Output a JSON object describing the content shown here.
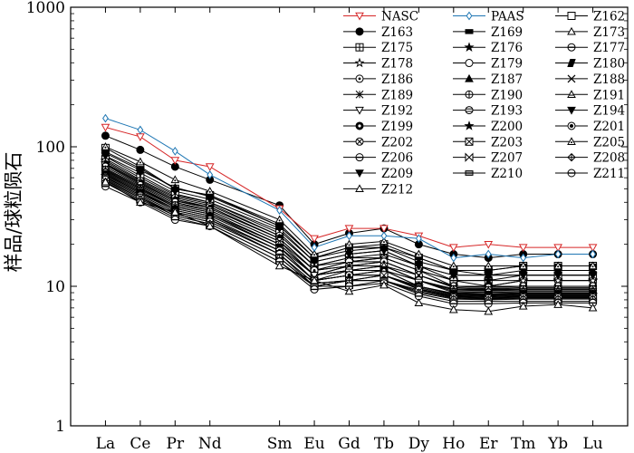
{
  "chart_data": {
    "type": "line",
    "title": "",
    "xlabel": "",
    "ylabel": "样品/球粒陨石",
    "yscale": "log",
    "ylim": [
      1,
      1000
    ],
    "yticks": [
      "1",
      "10",
      "100",
      "1000"
    ],
    "categories": [
      "La",
      "Ce",
      "Pr",
      "Nd",
      "Sm",
      "Eu",
      "Gd",
      "Tb",
      "Dy",
      "Ho",
      "Er",
      "Tm",
      "Yb",
      "Lu"
    ],
    "x_positions": [
      1,
      2,
      3,
      4,
      6,
      7,
      8,
      9,
      10,
      11,
      12,
      13,
      14,
      15
    ],
    "legend_position": "top-right",
    "series": [
      {
        "name": "NASC",
        "color": "#d62728",
        "marker": "tri-down-open",
        "values": [
          138,
          118,
          80,
          72,
          36,
          22,
          26,
          26,
          23,
          19,
          20,
          19,
          19,
          19
        ]
      },
      {
        "name": "PAAS",
        "color": "#1f77b4",
        "marker": "diamond-open",
        "values": [
          160,
          132,
          93,
          63,
          35,
          19,
          23,
          23,
          22,
          16,
          17,
          16,
          17,
          17
        ]
      },
      {
        "name": "Z162",
        "color": "#000000",
        "marker": "square-open",
        "values": [
          98,
          72,
          50,
          45,
          27,
          16,
          19,
          20,
          16,
          13,
          13,
          14,
          14,
          14
        ]
      },
      {
        "name": "Z163",
        "color": "#000000",
        "marker": "circle-filled",
        "values": [
          120,
          95,
          72,
          58,
          38,
          20,
          24,
          26,
          20,
          17,
          16,
          17,
          17,
          17
        ]
      },
      {
        "name": "Z169",
        "color": "#000000",
        "marker": "rect-filled",
        "values": [
          92,
          70,
          50,
          45,
          28,
          16,
          19,
          19,
          16,
          13,
          13,
          14,
          14,
          14
        ]
      },
      {
        "name": "Z173",
        "color": "#000000",
        "marker": "tri-up-open",
        "values": [
          85,
          62,
          46,
          40,
          25,
          15,
          17,
          18,
          14,
          12,
          12,
          12,
          12,
          12
        ]
      },
      {
        "name": "Z175",
        "color": "#000000",
        "marker": "square-grid",
        "values": [
          82,
          60,
          45,
          40,
          24,
          14,
          16,
          17,
          14,
          11,
          11,
          12,
          12,
          12
        ]
      },
      {
        "name": "Z176",
        "color": "#000000",
        "marker": "star-filled",
        "values": [
          80,
          58,
          44,
          39,
          23,
          14,
          16,
          16,
          13,
          11,
          11,
          11,
          11,
          11
        ]
      },
      {
        "name": "Z177",
        "color": "#000000",
        "marker": "circle-bar",
        "values": [
          78,
          57,
          43,
          38,
          23,
          14,
          15,
          16,
          13,
          11,
          10,
          11,
          11,
          11
        ]
      },
      {
        "name": "Z178",
        "color": "#000000",
        "marker": "star-open",
        "values": [
          76,
          56,
          42,
          37,
          22,
          13,
          15,
          16,
          13,
          10,
          10,
          11,
          11,
          11
        ]
      },
      {
        "name": "Z179",
        "color": "#000000",
        "marker": "circle-open",
        "values": [
          75,
          55,
          41,
          37,
          22,
          13,
          15,
          15,
          12,
          10,
          10,
          10,
          10,
          10
        ]
      },
      {
        "name": "Z180",
        "color": "#000000",
        "marker": "parallelogram-filled",
        "values": [
          74,
          54,
          41,
          36,
          22,
          13,
          14,
          15,
          12,
          10,
          10,
          10,
          10,
          10
        ]
      },
      {
        "name": "Z186",
        "color": "#000000",
        "marker": "circle-dot",
        "values": [
          72,
          53,
          40,
          35,
          21,
          13,
          14,
          15,
          12,
          10,
          9.8,
          10,
          10,
          10
        ]
      },
      {
        "name": "Z187",
        "color": "#000000",
        "marker": "tri-up-filled",
        "values": [
          90,
          68,
          51,
          44,
          27,
          16,
          18,
          19,
          15,
          13,
          12,
          13,
          13,
          13
        ]
      },
      {
        "name": "Z188",
        "color": "#000000",
        "marker": "x-cross",
        "values": [
          70,
          52,
          39,
          35,
          21,
          12,
          14,
          14,
          12,
          9.8,
          9.6,
          9.8,
          9.8,
          9.8
        ]
      },
      {
        "name": "Z189",
        "color": "#000000",
        "marker": "asterisk",
        "values": [
          69,
          51,
          38,
          34,
          20,
          12,
          14,
          14,
          11,
          9.6,
          9.5,
          9.6,
          9.6,
          9.6
        ]
      },
      {
        "name": "Z190",
        "color": "#000000",
        "marker": "circle-plus",
        "values": [
          68,
          50,
          38,
          34,
          20,
          12,
          13,
          14,
          11,
          9.5,
          9.4,
          9.5,
          9.5,
          9.5
        ]
      },
      {
        "name": "Z191",
        "color": "#000000",
        "marker": "tri-up-dash",
        "values": [
          67,
          50,
          37,
          33,
          20,
          12,
          13,
          14,
          11,
          9.4,
          9.3,
          9.4,
          9.4,
          9.4
        ]
      },
      {
        "name": "Z192",
        "color": "#000000",
        "marker": "tri-down-open",
        "values": [
          66,
          49,
          37,
          33,
          19,
          12,
          13,
          13,
          11,
          9.2,
          9.1,
          9.2,
          9.2,
          9.2
        ]
      },
      {
        "name": "Z193",
        "color": "#000000",
        "marker": "circle-lines",
        "values": [
          65,
          48,
          36,
          32,
          19,
          11,
          13,
          13,
          11,
          9.0,
          9.0,
          9.0,
          9.0,
          9.0
        ]
      },
      {
        "name": "Z194",
        "color": "#000000",
        "marker": "tri-down-filled",
        "values": [
          64,
          47,
          36,
          32,
          19,
          11,
          12,
          13,
          10,
          8.9,
          8.8,
          8.9,
          8.9,
          8.9
        ]
      },
      {
        "name": "Z199",
        "color": "#000000",
        "marker": "circle-ring",
        "values": [
          63,
          47,
          35,
          31,
          18,
          11,
          12,
          13,
          10,
          8.8,
          8.7,
          8.8,
          8.8,
          8.8
        ]
      },
      {
        "name": "Z200",
        "color": "#000000",
        "marker": "star-filled",
        "values": [
          62,
          46,
          35,
          31,
          18,
          11,
          12,
          12,
          10,
          8.7,
          8.6,
          8.7,
          8.7,
          8.7
        ]
      },
      {
        "name": "Z201",
        "color": "#000000",
        "marker": "circle-target",
        "values": [
          61,
          45,
          34,
          30,
          18,
          11,
          12,
          12,
          9.8,
          8.6,
          8.5,
          8.6,
          8.6,
          8.6
        ]
      },
      {
        "name": "Z202",
        "color": "#000000",
        "marker": "x-circle",
        "values": [
          60,
          45,
          34,
          30,
          17,
          10.5,
          11,
          12,
          9.6,
          8.5,
          8.4,
          8.5,
          8.5,
          8.5
        ]
      },
      {
        "name": "Z203",
        "color": "#000000",
        "marker": "square-x",
        "values": [
          59,
          44,
          33,
          29,
          17,
          10.5,
          11,
          12,
          9.5,
          8.4,
          8.3,
          8.4,
          8.4,
          8.4
        ]
      },
      {
        "name": "Z205",
        "color": "#000000",
        "marker": "tri-up-dot",
        "values": [
          100,
          78,
          58,
          48,
          30,
          17,
          20,
          21,
          17,
          14,
          14,
          14,
          14,
          14
        ]
      },
      {
        "name": "Z206",
        "color": "#000000",
        "marker": "circle-bar",
        "values": [
          58,
          43,
          33,
          29,
          17,
          10,
          11,
          11,
          9.4,
          8.3,
          8.2,
          8.3,
          8.3,
          8.3
        ]
      },
      {
        "name": "Z207",
        "color": "#000000",
        "marker": "bowtie",
        "values": [
          57,
          43,
          32,
          28,
          16,
          10,
          11,
          11,
          9.2,
          8.2,
          8.1,
          8.2,
          8.2,
          8.2
        ]
      },
      {
        "name": "Z208",
        "color": "#000000",
        "marker": "diamond-plus",
        "values": [
          56,
          42,
          32,
          28,
          16,
          10,
          11,
          11,
          9.0,
          8.1,
          8.0,
          8.1,
          8.1,
          8.1
        ]
      },
      {
        "name": "Z209",
        "color": "#000000",
        "marker": "tri-down-filled",
        "values": [
          86,
          65,
          48,
          42,
          26,
          15,
          17,
          18,
          14,
          12,
          12,
          12,
          12,
          12
        ]
      },
      {
        "name": "Z210",
        "color": "#000000",
        "marker": "rect-lines",
        "values": [
          55,
          41,
          31,
          27,
          15,
          10,
          10,
          11,
          8.8,
          7.8,
          7.8,
          7.8,
          7.8,
          7.8
        ]
      },
      {
        "name": "Z211",
        "color": "#000000",
        "marker": "circle-bar",
        "values": [
          52,
          40,
          30,
          27,
          15,
          9.5,
          10,
          10.5,
          8.5,
          7.5,
          7.5,
          7.6,
          7.6,
          7.6
        ]
      },
      {
        "name": "Z212",
        "color": "#000000",
        "marker": "tri-up-open",
        "values": [
          56,
          40,
          34,
          27,
          14,
          11,
          9.2,
          10.2,
          7.6,
          6.8,
          6.6,
          7.2,
          7.4,
          7.0
        ]
      }
    ]
  }
}
